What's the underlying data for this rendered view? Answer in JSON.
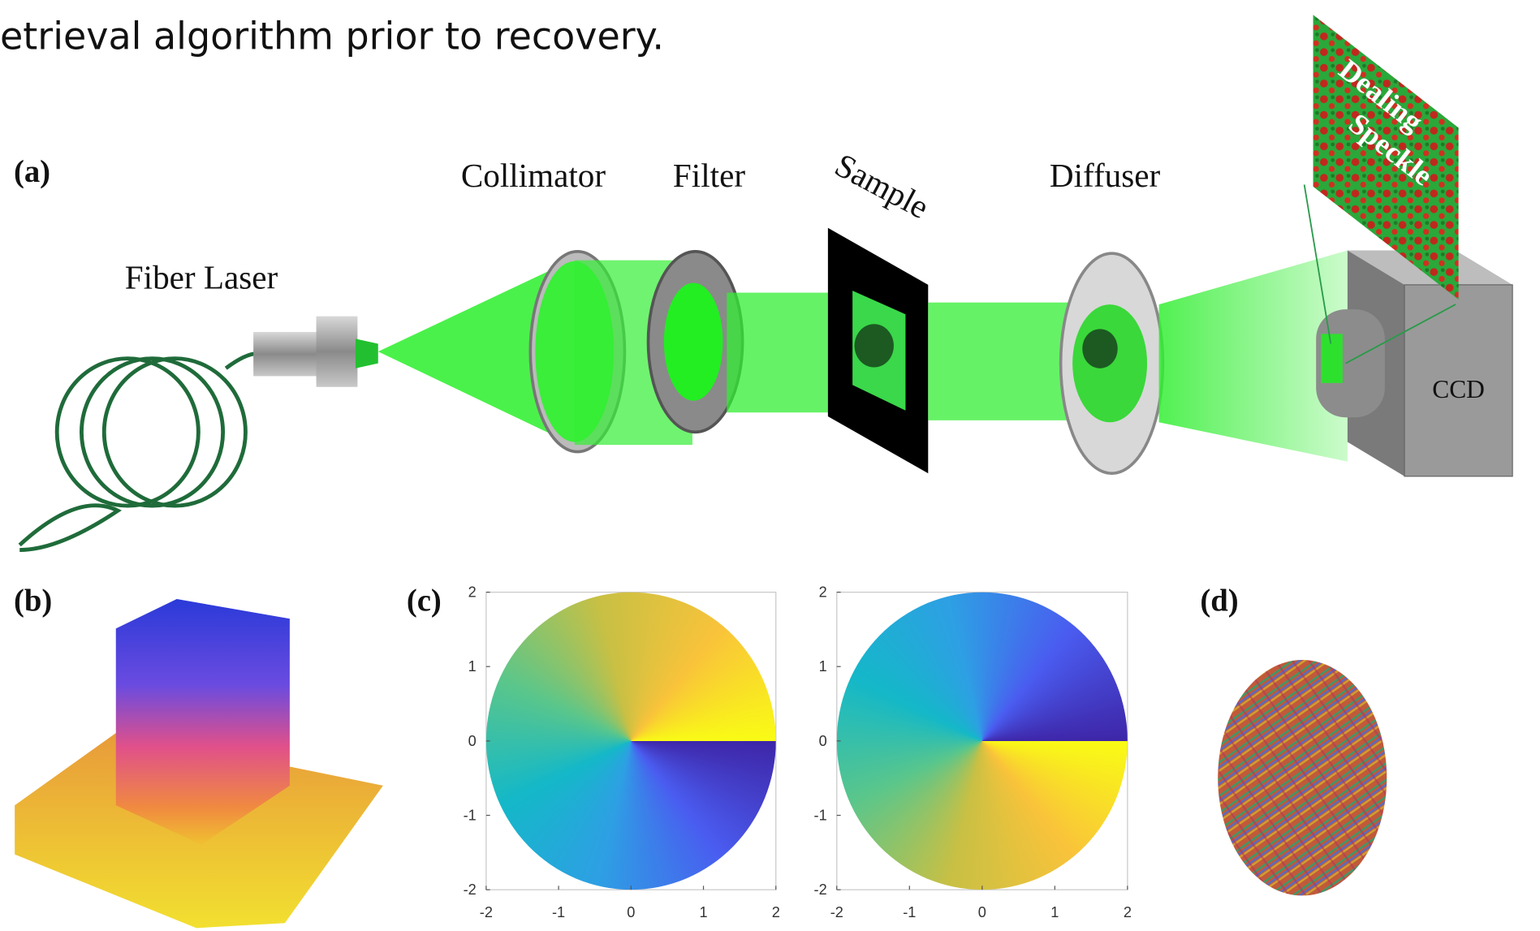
{
  "caption_fragment": "etrieval algorithm prior to recovery.",
  "panel_a": {
    "label": "(a)",
    "fiber_laser": "Fiber Laser",
    "collimator": "Collimator",
    "filter": "Filter",
    "sample": "Sample",
    "diffuser": "Diffuser",
    "ccd": "CCD",
    "speckle_text": [
      "Dealing",
      "Speckle"
    ]
  },
  "panel_b": {
    "label": "(b)"
  },
  "panel_c": {
    "label": "(c)",
    "plots": [
      {
        "xlim": [
          -2,
          2
        ],
        "ylim": [
          -2,
          2
        ],
        "xticks": [
          -2,
          -1,
          0,
          1,
          2
        ],
        "yticks": [
          -2,
          -1,
          0,
          1,
          2
        ]
      },
      {
        "xlim": [
          -2,
          2
        ],
        "ylim": [
          -2,
          2
        ],
        "xticks": [
          -2,
          -1,
          0,
          1,
          2
        ],
        "yticks": [
          -2,
          -1,
          0,
          1,
          2
        ]
      }
    ]
  },
  "panel_d": {
    "label": "(d)"
  }
}
